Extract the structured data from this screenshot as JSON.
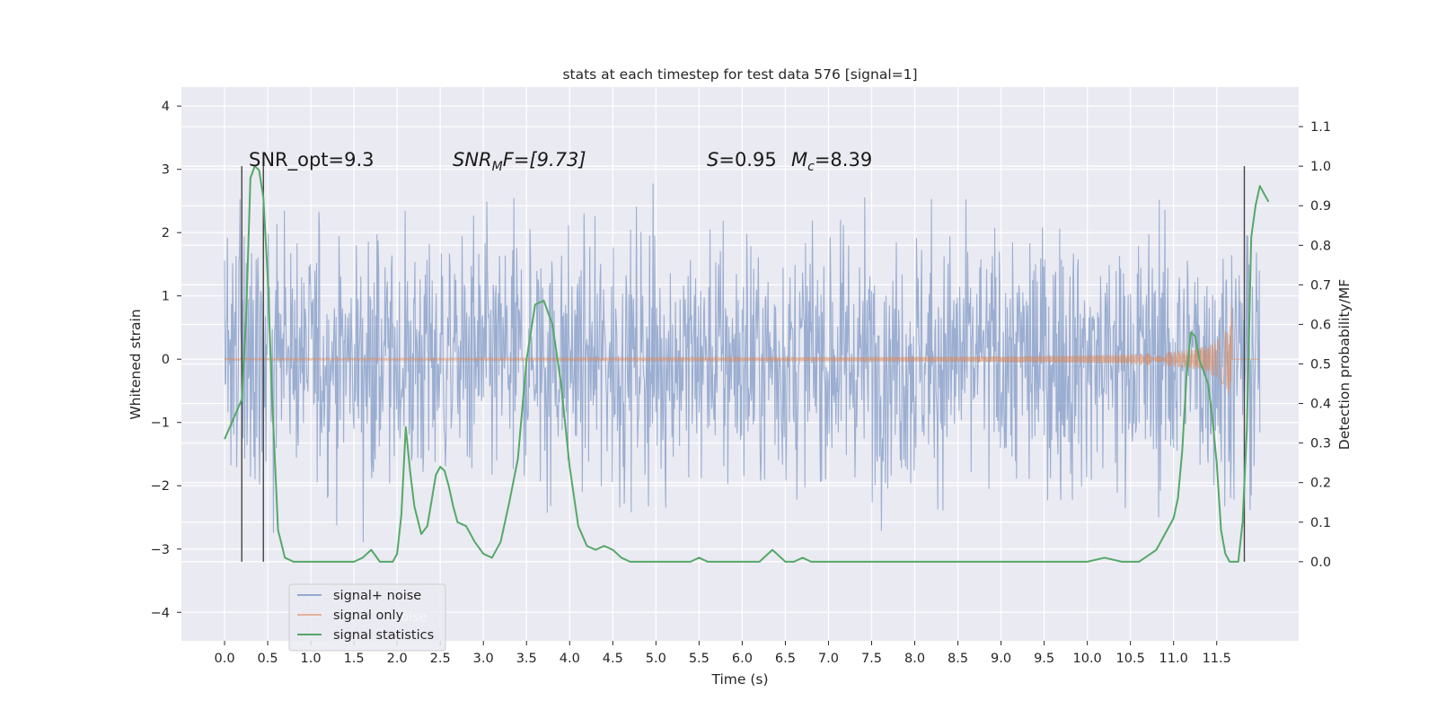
{
  "chart_data": {
    "type": "line",
    "title": "stats at each timestep for test data 576 [signal=1]",
    "xlabel": "Time (s)",
    "ylabel_left": "Whitened strain",
    "ylabel_right": "Detection probability/MF",
    "xlim": [
      -0.5,
      12.45
    ],
    "ylim_left": [
      -4.45,
      4.3
    ],
    "ylim_right": [
      -0.2,
      1.2
    ],
    "x_ticks": [
      "0.0",
      "0.5",
      "1.0",
      "1.5",
      "2.0",
      "2.5",
      "3.0",
      "3.5",
      "4.0",
      "4.5",
      "5.0",
      "5.5",
      "6.0",
      "6.5",
      "7.0",
      "7.5",
      "8.0",
      "8.5",
      "9.0",
      "9.5",
      "10.0",
      "10.5",
      "11.0",
      "11.5"
    ],
    "y_ticks_left": [
      "4",
      "3",
      "2",
      "1",
      "0",
      "−1",
      "−2",
      "−3",
      "−4"
    ],
    "y_ticks_right": [
      "1.1",
      "1.0",
      "0.9",
      "0.8",
      "0.7",
      "0.6",
      "0.5",
      "0.4",
      "0.3",
      "0.2",
      "0.1",
      "0.0"
    ],
    "grid": true,
    "annotations": {
      "snr_opt": "SNR_opt=9.3",
      "snr_mf_main": "SNR",
      "snr_mf_sub": "M",
      "snr_mf_tail": "F=[9.73]",
      "s_var": "S",
      "s_val": "=0.95",
      "mc_var": "M",
      "mc_sub": "c",
      "mc_val": "=8.39"
    },
    "legend": {
      "placement": "lower-left",
      "entries": [
        "signal+ noise",
        "signal only",
        "signal statistics"
      ],
      "ghost_text": "noise"
    },
    "series": [
      {
        "name": "signal+ noise",
        "axis": "left",
        "color": "#4c72b0",
        "noise_std": 1.0,
        "t_start": 0.0,
        "t_end": 12.0
      },
      {
        "name": "signal only",
        "axis": "left",
        "color": "#dd8452",
        "chirp_end": 11.68,
        "peak_amplitude": 1.0
      },
      {
        "name": "signal statistics",
        "axis": "right",
        "color": "#55a868",
        "x": [
          0.0,
          0.12,
          0.2,
          0.25,
          0.3,
          0.35,
          0.4,
          0.45,
          0.5,
          0.55,
          0.62,
          0.7,
          0.8,
          1.0,
          1.2,
          1.4,
          1.5,
          1.6,
          1.7,
          1.8,
          1.9,
          1.95,
          2.0,
          2.05,
          2.1,
          2.15,
          2.2,
          2.28,
          2.35,
          2.45,
          2.5,
          2.55,
          2.6,
          2.65,
          2.7,
          2.8,
          2.9,
          3.0,
          3.1,
          3.2,
          3.3,
          3.4,
          3.5,
          3.6,
          3.7,
          3.8,
          3.9,
          4.0,
          4.1,
          4.2,
          4.3,
          4.4,
          4.5,
          4.6,
          4.7,
          4.8,
          4.9,
          5.0,
          5.2,
          5.4,
          5.5,
          5.6,
          5.8,
          6.0,
          6.2,
          6.3,
          6.35,
          6.4,
          6.5,
          6.6,
          6.7,
          6.8,
          6.9,
          7.0,
          7.2,
          7.5,
          8.0,
          9.0,
          9.5,
          9.8,
          10.0,
          10.2,
          10.4,
          10.6,
          10.8,
          11.0,
          11.05,
          11.1,
          11.15,
          11.2,
          11.25,
          11.3,
          11.35,
          11.4,
          11.45,
          11.5,
          11.55,
          11.6,
          11.65,
          11.7,
          11.75,
          11.8,
          11.85,
          11.9,
          11.95,
          12.0,
          12.05,
          12.1
        ],
        "values": [
          0.31,
          0.37,
          0.41,
          0.62,
          0.97,
          1.0,
          0.99,
          0.92,
          0.72,
          0.42,
          0.08,
          0.01,
          0.0,
          0.0,
          0.0,
          0.0,
          0.0,
          0.01,
          0.03,
          0.0,
          0.0,
          0.0,
          0.02,
          0.12,
          0.34,
          0.23,
          0.14,
          0.07,
          0.09,
          0.22,
          0.24,
          0.23,
          0.19,
          0.14,
          0.1,
          0.09,
          0.05,
          0.02,
          0.01,
          0.05,
          0.15,
          0.26,
          0.51,
          0.65,
          0.66,
          0.6,
          0.45,
          0.24,
          0.09,
          0.04,
          0.03,
          0.04,
          0.03,
          0.01,
          0.0,
          0.0,
          0.0,
          0.0,
          0.0,
          0.0,
          0.01,
          0.0,
          0.0,
          0.0,
          0.0,
          0.02,
          0.03,
          0.02,
          0.0,
          0.0,
          0.01,
          0.0,
          0.0,
          0.0,
          0.0,
          0.0,
          0.0,
          0.0,
          0.0,
          0.0,
          0.0,
          0.01,
          0.0,
          0.0,
          0.03,
          0.11,
          0.16,
          0.28,
          0.47,
          0.58,
          0.57,
          0.51,
          0.48,
          0.45,
          0.36,
          0.25,
          0.08,
          0.02,
          0.0,
          0.0,
          0.0,
          0.1,
          0.34,
          0.82,
          0.9,
          0.95,
          0.93,
          0.91
        ]
      }
    ],
    "vlines": [
      0.2,
      0.45,
      11.82
    ]
  }
}
